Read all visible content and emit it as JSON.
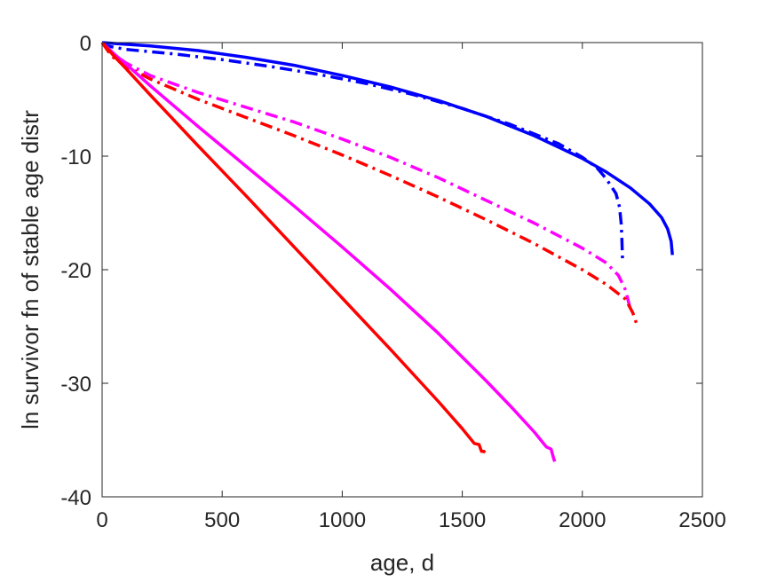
{
  "chart_data": {
    "type": "line",
    "title": "",
    "xlabel": "age, d",
    "ylabel": "ln survivor fn of stable age distr",
    "xlim": [
      0,
      2500
    ],
    "ylim": [
      -40,
      0
    ],
    "xticks": [
      0,
      500,
      1000,
      1500,
      2000,
      2500
    ],
    "yticks": [
      0,
      -10,
      -20,
      -30,
      -40
    ],
    "xtick_labels": [
      "0",
      "500",
      "1000",
      "1500",
      "2000",
      "2500"
    ],
    "ytick_labels": [
      "0",
      "-10",
      "-20",
      "-30",
      "-40"
    ],
    "grid": false,
    "legend": "none",
    "series": [
      {
        "color": "#0000ff",
        "style": "solid",
        "x": [
          0,
          200,
          400,
          600,
          800,
          1000,
          1200,
          1400,
          1600,
          1800,
          2000,
          2100,
          2200,
          2280,
          2330,
          2355,
          2370,
          2375
        ],
        "y": [
          0,
          -0.3,
          -0.7,
          -1.3,
          -2.0,
          -2.9,
          -3.9,
          -5.1,
          -6.5,
          -8.2,
          -10.2,
          -11.4,
          -12.8,
          -14.2,
          -15.4,
          -16.4,
          -17.5,
          -18.7
        ]
      },
      {
        "color": "#0000ff",
        "style": "dashdot",
        "x": [
          0,
          20,
          100,
          300,
          500,
          700,
          900,
          1100,
          1300,
          1500,
          1700,
          1900,
          2000,
          2060,
          2100,
          2140,
          2155,
          2162,
          2165,
          2167
        ],
        "y": [
          0,
          -0.3,
          -0.6,
          -1.0,
          -1.5,
          -2.1,
          -2.8,
          -3.6,
          -4.6,
          -5.8,
          -7.2,
          -8.9,
          -10.1,
          -11.0,
          -12.0,
          -13.3,
          -14.5,
          -16.0,
          -17.5,
          -19.0
        ]
      },
      {
        "color": "#ff00ff",
        "style": "dashdot",
        "x": [
          0,
          40,
          100,
          200,
          400,
          600,
          800,
          1000,
          1200,
          1400,
          1600,
          1800,
          2000,
          2100,
          2150,
          2180,
          2200
        ],
        "y": [
          0,
          -0.9,
          -1.8,
          -2.9,
          -4.4,
          -5.7,
          -7.0,
          -8.5,
          -10.1,
          -11.9,
          -13.9,
          -15.9,
          -18.1,
          -19.4,
          -20.5,
          -21.8,
          -23.5
        ]
      },
      {
        "color": "#ff0000",
        "style": "dashdot",
        "x": [
          0,
          40,
          100,
          200,
          400,
          600,
          800,
          1000,
          1200,
          1400,
          1600,
          1800,
          2000,
          2100,
          2180,
          2210,
          2230
        ],
        "y": [
          0,
          -1.2,
          -2.1,
          -3.2,
          -5.0,
          -6.6,
          -8.2,
          -9.9,
          -11.7,
          -13.6,
          -15.6,
          -17.7,
          -20.0,
          -21.3,
          -22.6,
          -23.8,
          -25.0
        ]
      },
      {
        "color": "#ff00ff",
        "style": "solid",
        "x": [
          0,
          50,
          100,
          200,
          400,
          600,
          800,
          1000,
          1200,
          1400,
          1600,
          1700,
          1800,
          1850,
          1870,
          1880,
          1885
        ],
        "y": [
          0,
          -1.0,
          -1.9,
          -3.8,
          -7.4,
          -10.9,
          -14.4,
          -18.0,
          -21.7,
          -25.6,
          -29.8,
          -32.0,
          -34.3,
          -35.6,
          -35.8,
          -36.6,
          -36.9
        ]
      },
      {
        "color": "#ff0000",
        "style": "solid",
        "x": [
          0,
          50,
          100,
          200,
          400,
          600,
          800,
          1000,
          1200,
          1400,
          1500,
          1550,
          1570,
          1580,
          1590,
          1595
        ],
        "y": [
          0,
          -1.2,
          -2.3,
          -4.6,
          -9.1,
          -13.5,
          -18.0,
          -22.5,
          -27.0,
          -31.6,
          -34.0,
          -35.3,
          -35.4,
          -36.0,
          -36.0,
          -36.1
        ]
      }
    ]
  }
}
